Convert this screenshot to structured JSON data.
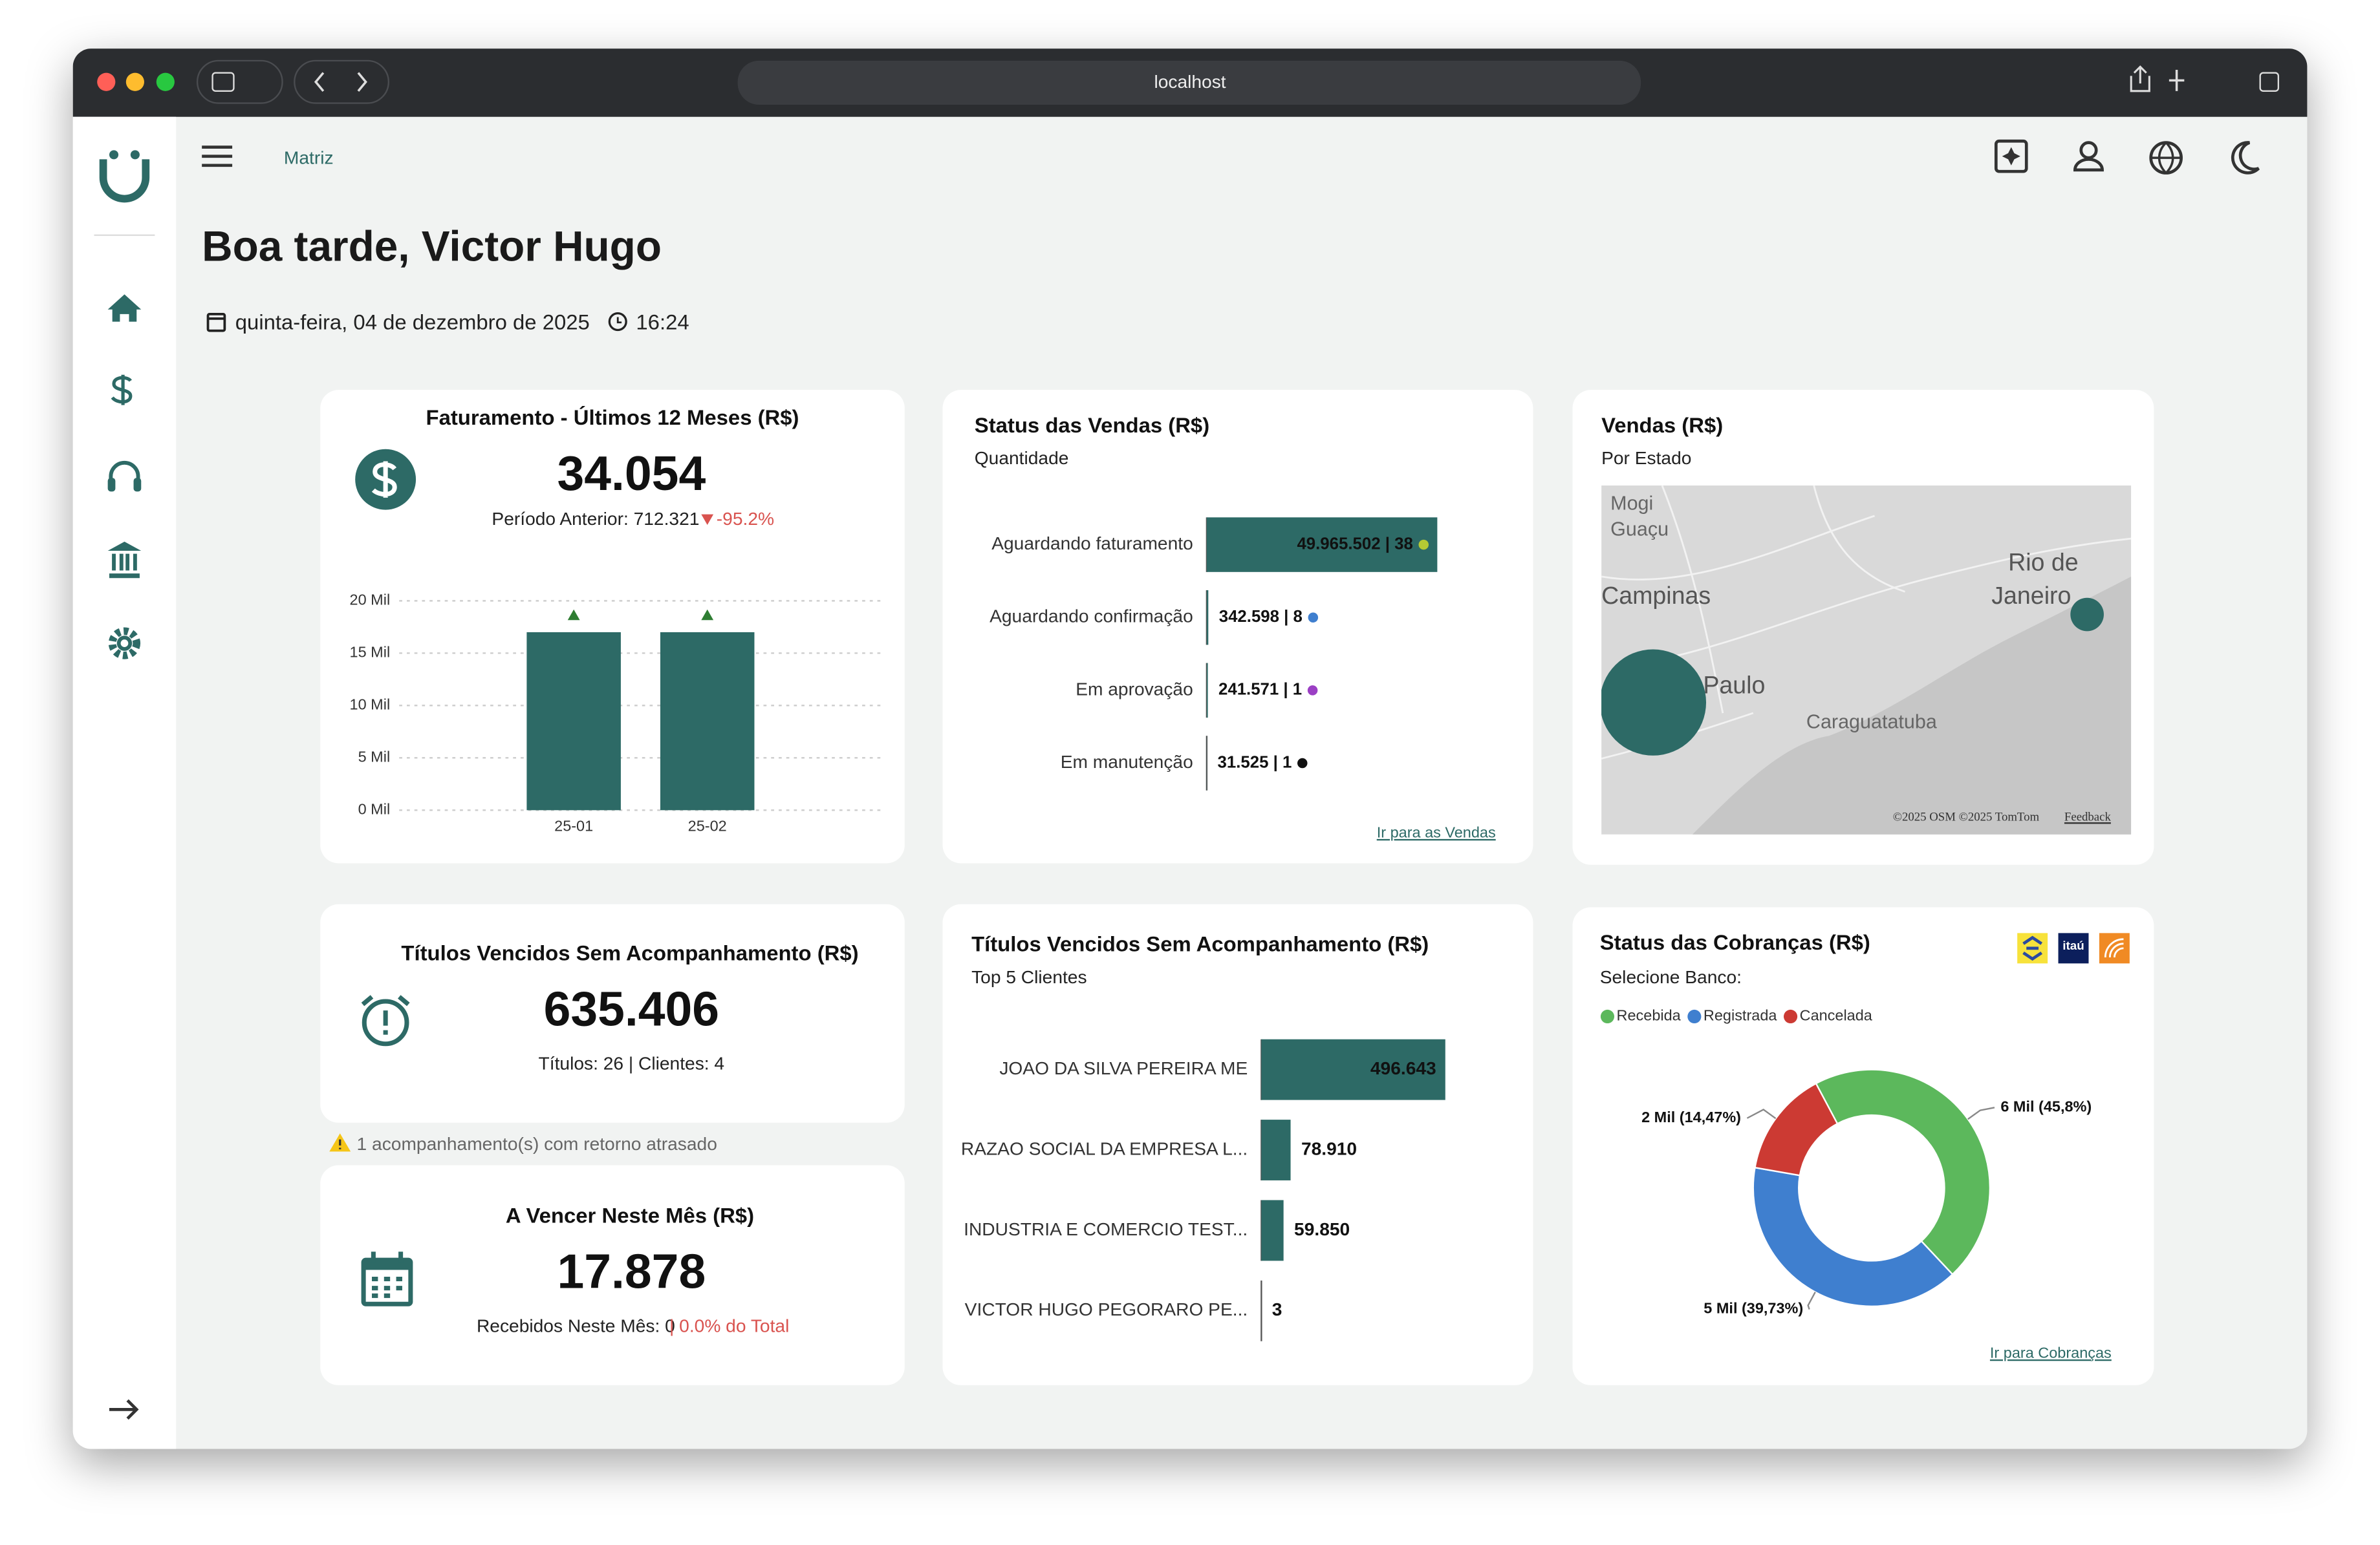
{
  "browser": {
    "url": "localhost"
  },
  "header": {
    "breadcrumb": "Matriz",
    "greeting": "Boa tarde, Victor Hugo",
    "date": "quinta-feira, 04 de dezembro de 2025",
    "time": "16:24"
  },
  "revenue": {
    "title": "Faturamento - Últimos 12 Meses (R$)",
    "value": "34.054",
    "previous": "Período Anterior: 712.321",
    "change": "-95.2%",
    "chart": {
      "type": "bar",
      "categories": [
        "25-01",
        "25-02"
      ],
      "values": [
        17000,
        17000
      ],
      "ylim": [
        0,
        20000
      ],
      "yticks": [
        {
          "value": 0,
          "label": "0 Mil"
        },
        {
          "value": 5000,
          "label": "5 Mil"
        },
        {
          "value": 10000,
          "label": "10 Mil"
        },
        {
          "value": 15000,
          "label": "15 Mil"
        },
        {
          "value": 20000,
          "label": "20 Mil"
        }
      ],
      "color": "#2d6a66",
      "grid": true
    }
  },
  "sales_status": {
    "title": "Status das Vendas (R$)",
    "subtitle": "Quantidade",
    "link": "Ir para as Vendas",
    "chart": {
      "type": "hbar",
      "categories": [
        "Aguardando faturamento",
        "Aguardando confirmação",
        "Em aprovação",
        "Em manutenção"
      ],
      "values": [
        49965502,
        342598,
        241571,
        31525
      ],
      "value_labels": [
        "49.965.502 | 38",
        "342.598 | 8",
        "241.571 | 1",
        "31.525 | 1"
      ],
      "dot_colors": [
        "#b5c934",
        "#3f7fcf",
        "#9b3fc4",
        "#111111"
      ],
      "xlim": [
        0,
        50000000
      ],
      "color": "#2d6a66"
    }
  },
  "map": {
    "title": "Vendas (R$)",
    "subtitle": "Por Estado",
    "labels": [
      "Mogi",
      "Guaçu",
      "Campinas",
      "Rio de",
      "Janeiro",
      "Paulo",
      "Caraguatatuba"
    ],
    "attribution": "©2025 OSM ©2025 TomTom",
    "feedback": "Feedback"
  },
  "overdue": {
    "title": "Títulos Vencidos Sem Acompanhamento (R$)",
    "value": "635.406",
    "detail": "Títulos: 26 | Clientes: 4",
    "warning": "1 acompanhamento(s) com retorno atrasado"
  },
  "due_month": {
    "title": "A Vencer Neste Mês (R$)",
    "value": "17.878",
    "detail": "Recebidos Neste Mês: 0",
    "share": "| 0.0% do Total"
  },
  "top_clients": {
    "title": "Títulos Vencidos Sem Acompanhamento (R$)",
    "subtitle": "Top 5 Clientes",
    "chart": {
      "type": "hbar",
      "categories": [
        "JOAO DA SILVA PEREIRA ME",
        "RAZAO SOCIAL DA EMPRESA L...",
        "INDUSTRIA E COMERCIO TEST...",
        "VICTOR HUGO PEGORARO PE..."
      ],
      "values": [
        496643,
        78910,
        59850,
        3
      ],
      "value_labels": [
        "496.643",
        "78.910",
        "59.850",
        "3"
      ],
      "xlim": [
        0,
        500000
      ],
      "color": "#2d6a66"
    }
  },
  "collections": {
    "title": "Status das Cobranças (R$)",
    "subtitle": "Selecione Banco:",
    "bank": "itaú",
    "link": "Ir para Cobranças",
    "chart": {
      "type": "donut",
      "series": [
        {
          "name": "Recebida",
          "color": "#5cb85c",
          "value": 45.8,
          "value_label": "6 Mil (45,8%)"
        },
        {
          "name": "Registrada",
          "color": "#3f7fcf",
          "value": 39.73,
          "value_label": "5 Mil (39,73%)"
        },
        {
          "name": "Cancelada",
          "color": "#cc3a33",
          "value": 14.47,
          "value_label": "2 Mil (14,47%)"
        }
      ]
    }
  }
}
